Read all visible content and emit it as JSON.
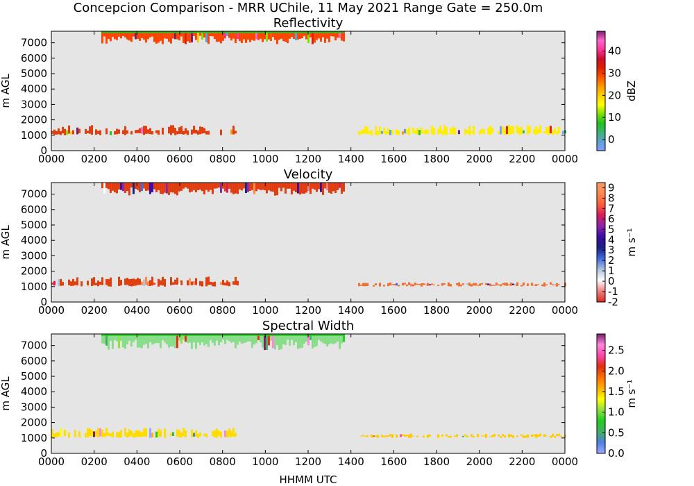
{
  "figure": {
    "suptitle": "Concepcion Comparison - MRR UChile, 11 May 2021 Range Gate = 250.0m",
    "xlabel": "HHMM UTC",
    "background_color": "#e5e5e5"
  },
  "chart_data": [
    {
      "type": "heatmap",
      "title": "Reflectivity",
      "ylabel": "m AGL",
      "xlim": [
        0,
        24
      ],
      "ylim": [
        0,
        7750
      ],
      "x_tick_labels": [
        "0000",
        "0200",
        "0400",
        "0600",
        "0800",
        "1000",
        "1200",
        "1400",
        "1600",
        "1800",
        "2000",
        "2200",
        "0000"
      ],
      "y_ticks": [
        0,
        1000,
        2000,
        3000,
        4000,
        5000,
        6000,
        7000
      ],
      "colorbar": {
        "label": "dBZ",
        "range": [
          -5,
          49
        ],
        "ticks": [
          0,
          10,
          20,
          30,
          40
        ],
        "colors": [
          "#7f9fff",
          "#5fa0d0",
          "#3cb371",
          "#22c022",
          "#80e000",
          "#ffff00",
          "#ffd000",
          "#ff9900",
          "#ff5500",
          "#e02000",
          "#c8102e",
          "#ff3399",
          "#ff66cc",
          "#7a1f6e"
        ]
      },
      "bands": [
        {
          "name": "upper",
          "start_hhmm": "0220",
          "end_hhmm": "1340",
          "height_range_m": [
            6900,
            7750
          ],
          "dominant_color": "#ff4400"
        },
        {
          "name": "lower-1",
          "start_hhmm": "0000",
          "end_hhmm": "0840",
          "height_range_m": [
            1000,
            1700
          ],
          "dominant_color": "#e04010"
        },
        {
          "name": "lower-2",
          "start_hhmm": "1420",
          "end_hhmm": "2400",
          "height_range_m": [
            1000,
            1700
          ],
          "dominant_color": "#ffee00"
        }
      ]
    },
    {
      "type": "heatmap",
      "title": "Velocity",
      "ylabel": "m AGL",
      "xlim": [
        0,
        24
      ],
      "ylim": [
        0,
        7750
      ],
      "x_tick_labels": [
        "0000",
        "0200",
        "0400",
        "0600",
        "0800",
        "1000",
        "1200",
        "1400",
        "1600",
        "1800",
        "2000",
        "2200",
        "0000"
      ],
      "y_ticks": [
        0,
        1000,
        2000,
        3000,
        4000,
        5000,
        6000,
        7000
      ],
      "colorbar": {
        "label": "m s⁻¹",
        "range": [
          -2,
          9.5
        ],
        "ticks": [
          -2,
          -1,
          0,
          1,
          2,
          3,
          4,
          5,
          6,
          7,
          8,
          9
        ],
        "colors": [
          "#d62d20",
          "#f08080",
          "#ffffff",
          "#b0c4de",
          "#4169e1",
          "#1a237e",
          "#3a0ca3",
          "#8e24aa",
          "#d81b60",
          "#ff5e3a",
          "#ff8a50",
          "#ff9966"
        ]
      },
      "bands": [
        {
          "name": "upper",
          "start_hhmm": "0220",
          "end_hhmm": "1340",
          "height_range_m": [
            6900,
            7750
          ],
          "dominant_color": "#e03c10"
        },
        {
          "name": "lower-1",
          "start_hhmm": "0000",
          "end_hhmm": "0840",
          "height_range_m": [
            1000,
            1700
          ],
          "dominant_color": "#e04010"
        },
        {
          "name": "lower-2",
          "start_hhmm": "1420",
          "end_hhmm": "2400",
          "height_range_m": [
            1000,
            1300
          ],
          "dominant_color": "#f07030"
        }
      ]
    },
    {
      "type": "heatmap",
      "title": "Spectral Width",
      "ylabel": "m AGL",
      "xlim": [
        0,
        24
      ],
      "ylim": [
        0,
        7750
      ],
      "x_tick_labels": [
        "0000",
        "0200",
        "0400",
        "0600",
        "0800",
        "1000",
        "1200",
        "1400",
        "1600",
        "1800",
        "2000",
        "2200",
        "0000"
      ],
      "y_ticks": [
        0,
        1000,
        2000,
        3000,
        4000,
        5000,
        6000,
        7000
      ],
      "colorbar": {
        "label": "m s⁻¹",
        "range": [
          0,
          2.9
        ],
        "ticks": [
          "0.0",
          "0.5",
          "1.0",
          "1.5",
          "2.0",
          "2.5"
        ],
        "colors": [
          "#99aaff",
          "#5080e0",
          "#40b060",
          "#22cc22",
          "#90e040",
          "#ffff00",
          "#ffb000",
          "#ff7000",
          "#e03010",
          "#ff44aa",
          "#ff88dd",
          "#7a1f6e"
        ]
      },
      "bands": [
        {
          "name": "upper",
          "start_hhmm": "0220",
          "end_hhmm": "1340",
          "height_range_m": [
            6700,
            7750
          ],
          "dominant_color": "#88dd88"
        },
        {
          "name": "lower-1",
          "start_hhmm": "0000",
          "end_hhmm": "0840",
          "height_range_m": [
            1000,
            1700
          ],
          "dominant_color": "#ffdd00"
        },
        {
          "name": "lower-2",
          "start_hhmm": "1420",
          "end_hhmm": "2400",
          "height_range_m": [
            1000,
            1300
          ],
          "dominant_color": "#ffcc00"
        }
      ]
    }
  ]
}
